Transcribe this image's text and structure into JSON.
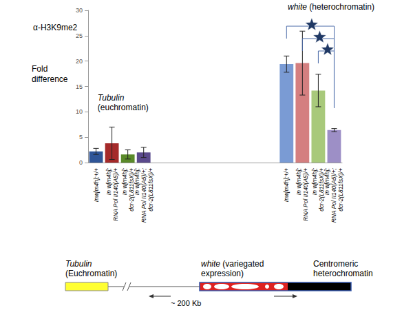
{
  "chart_data": {
    "type": "bar",
    "title": "α-H3K9me2",
    "y_label": "Fold\ndifference",
    "categories": [
      "Inw[m4h];+/+",
      "In w[m4h];\nRNA Pol II140(A5)/+",
      "In w[m4h];\ndcr-2(L811fsX)/+",
      "In w[m4h];\nRNA Pol II140(A5)/+;\ndcr-2(L811fsX)/+",
      null,
      null,
      null,
      null,
      null,
      null,
      null,
      null,
      "Inw[m4h];+/+",
      "In w[m4h];\nRNA Pol II140(A5)/+",
      "In w[m4h];\ndcr-2(L811fsX)/+",
      "In w[m4h];\nRNA Pol II140(A5)/+;\ndcr-2(L811fsX)/+"
    ],
    "values": [
      2.2,
      3.8,
      1.6,
      2.0,
      null,
      null,
      null,
      null,
      null,
      null,
      null,
      null,
      19.4,
      19.6,
      14.2,
      6.4
    ],
    "errors": [
      0.6,
      3.2,
      0.9,
      1.0,
      null,
      null,
      null,
      null,
      null,
      null,
      null,
      null,
      1.6,
      6.3,
      3.2,
      0.3
    ],
    "colors": [
      "#2f5597",
      "#a52a2a",
      "#5a8a2a",
      "#5b4a8c",
      null,
      null,
      null,
      null,
      null,
      null,
      null,
      null,
      "#7a9bd4",
      "#d47f80",
      "#a8c97b",
      "#9d8fc6"
    ],
    "ylim": [
      0,
      30
    ],
    "yticks": [
      0,
      5,
      10,
      15,
      20,
      25,
      30
    ],
    "grid": false,
    "group_labels": [
      "Tubulin\n(euchromatin)",
      "white (heterochromatin)"
    ],
    "comparisons": [
      [
        12,
        15
      ],
      [
        13,
        15
      ],
      [
        14,
        15
      ]
    ],
    "diagram_labels": [
      "Tubulin\n(Euchromatin)",
      "white (variegated\nexpression)",
      "Centromeric\nheterochromatin",
      "~ 200 Kb"
    ]
  }
}
